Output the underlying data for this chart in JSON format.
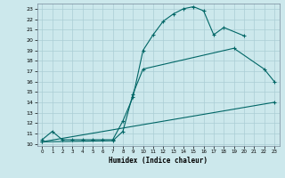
{
  "xlabel": "Humidex (Indice chaleur)",
  "background_color": "#cce8ec",
  "grid_color": "#aacdd4",
  "line_color": "#006666",
  "xlim": [
    -0.5,
    23.5
  ],
  "ylim": [
    9.8,
    23.5
  ],
  "xticks": [
    0,
    1,
    2,
    3,
    4,
    5,
    6,
    7,
    8,
    9,
    10,
    11,
    12,
    13,
    14,
    15,
    16,
    17,
    18,
    19,
    20,
    21,
    22,
    23
  ],
  "yticks": [
    10,
    11,
    12,
    13,
    14,
    15,
    16,
    17,
    18,
    19,
    20,
    21,
    22,
    23
  ],
  "line1_x": [
    0,
    1,
    2,
    3,
    4,
    5,
    6,
    7,
    8,
    9,
    10,
    11,
    12,
    13,
    14,
    15,
    16,
    17,
    18,
    20
  ],
  "line1_y": [
    10.4,
    11.2,
    10.4,
    10.4,
    10.4,
    10.4,
    10.4,
    10.4,
    12.2,
    14.5,
    19.0,
    20.5,
    21.8,
    22.5,
    23.0,
    23.2,
    22.8,
    20.5,
    21.2,
    20.4
  ],
  "line2_x": [
    0,
    7,
    8,
    9,
    10,
    19,
    22,
    23
  ],
  "line2_y": [
    10.2,
    10.3,
    11.2,
    14.8,
    17.2,
    19.2,
    17.2,
    16.0
  ],
  "line3_x": [
    0,
    23
  ],
  "line3_y": [
    10.2,
    14.0
  ]
}
